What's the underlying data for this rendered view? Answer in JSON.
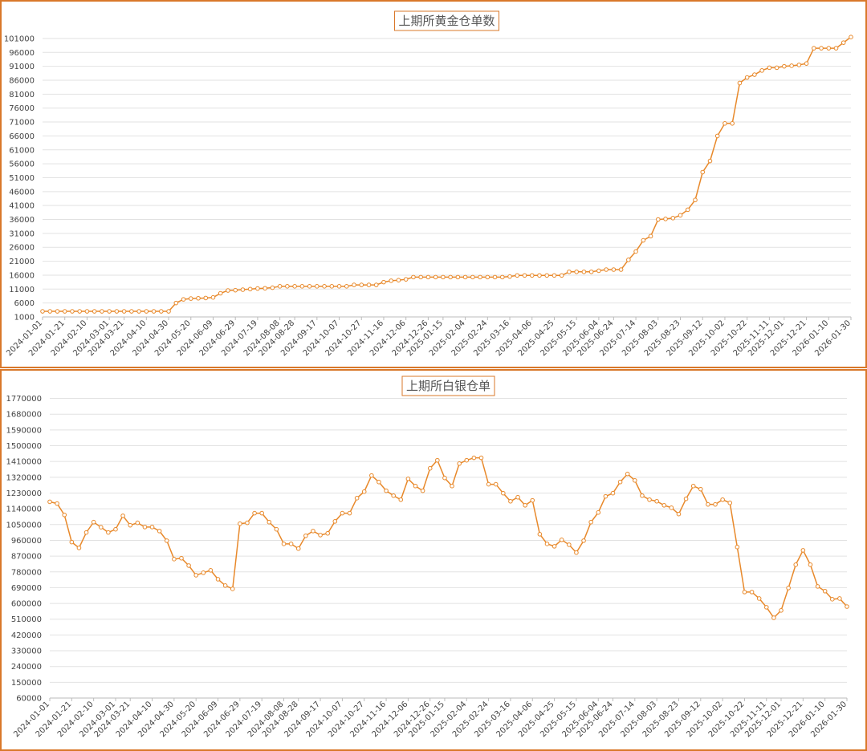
{
  "chart_data": [
    {
      "type": "line",
      "title": "上期所黄金仓单数",
      "color": "#e8892b",
      "grid": true,
      "categories": [
        "2024-01-01",
        null,
        null,
        "2024-01-21",
        null,
        null,
        "2024-02-10",
        null,
        null,
        "2024-03-01",
        null,
        "2024-03-21",
        null,
        null,
        "2024-04-10",
        null,
        null,
        "2024-04-30",
        null,
        null,
        "2024-05-20",
        null,
        null,
        "2024-06-09",
        null,
        null,
        "2024-06-29",
        null,
        null,
        "2024-07-19",
        null,
        null,
        "2024-08-08",
        null,
        "2024-08-28",
        null,
        null,
        "2024-09-17",
        null,
        null,
        "2024-10-07",
        null,
        null,
        "2024-10-27",
        null,
        null,
        "2024-11-16",
        null,
        null,
        "2024-12-06",
        null,
        null,
        "2024-12-26",
        null,
        "2025-01-15",
        null,
        null,
        "2025-02-04",
        null,
        null,
        "2025-02-24",
        null,
        null,
        "2025-03-16",
        null,
        null,
        "2025-04-06",
        null,
        null,
        "2025-04-25",
        null,
        null,
        "2025-05-15",
        null,
        null,
        "2025-06-04",
        null,
        "2025-06-24",
        null,
        null,
        "2025-07-14",
        null,
        null,
        "2025-08-03",
        null,
        null,
        "2025-08-23",
        null,
        null,
        "2025-09-12",
        null,
        null,
        "2025-10-02",
        null,
        null,
        "2025-10-22",
        null,
        null,
        "2025-11-11",
        null,
        "2025-12-01",
        null,
        null,
        "2025-12-21",
        null,
        null,
        "2026-01-10",
        null,
        null,
        "2026-01-30"
      ],
      "values": [
        3000,
        3000,
        3000,
        3000,
        3000,
        3000,
        3000,
        3000,
        3000,
        3000,
        3000,
        3000,
        3000,
        3000,
        3000,
        3000,
        3000,
        3000,
        6000,
        7300,
        7600,
        7700,
        7800,
        8000,
        9500,
        10500,
        10600,
        10800,
        11000,
        11200,
        11300,
        11500,
        12000,
        12000,
        12000,
        12000,
        12000,
        12000,
        12000,
        12000,
        12000,
        12000,
        12500,
        12500,
        12500,
        12500,
        13500,
        14000,
        14200,
        14500,
        15300,
        15300,
        15300,
        15300,
        15300,
        15300,
        15300,
        15300,
        15300,
        15300,
        15300,
        15300,
        15300,
        15500,
        15900,
        15900,
        15900,
        15900,
        15900,
        15900,
        15900,
        17200,
        17200,
        17200,
        17200,
        17600,
        18000,
        18000,
        18000,
        21500,
        24500,
        28500,
        30000,
        36000,
        36200,
        36500,
        37500,
        39500,
        43000,
        53000,
        57000,
        66000,
        70500,
        70500,
        85000,
        87000,
        88000,
        89500,
        90500,
        90500,
        91000,
        91200,
        91500,
        92000,
        97500,
        97500,
        97500,
        97500,
        99500,
        101500
      ],
      "ylim": [
        1000,
        103000
      ],
      "yticks": [
        1000,
        6000,
        11000,
        16000,
        21000,
        26000,
        31000,
        36000,
        41000,
        46000,
        51000,
        56000,
        61000,
        66000,
        71000,
        76000,
        81000,
        86000,
        91000,
        96000,
        101000
      ]
    },
    {
      "type": "line",
      "title": "上期所白银仓单",
      "color": "#e8892b",
      "grid": true,
      "categories": [
        "2024-01-01",
        null,
        null,
        "2024-01-21",
        null,
        null,
        "2024-02-10",
        null,
        null,
        "2024-03-01",
        null,
        "2024-03-21",
        null,
        null,
        "2024-04-10",
        null,
        null,
        "2024-04-30",
        null,
        null,
        "2024-05-20",
        null,
        null,
        "2024-06-09",
        null,
        null,
        "2024-06-29",
        null,
        null,
        "2024-07-19",
        null,
        null,
        "2024-08-08",
        null,
        "2024-08-28",
        null,
        null,
        "2024-09-17",
        null,
        null,
        "2024-10-07",
        null,
        null,
        "2024-10-27",
        null,
        null,
        "2024-11-16",
        null,
        null,
        "2024-12-06",
        null,
        null,
        "2024-12-26",
        null,
        "2025-01-15",
        null,
        null,
        "2025-02-04",
        null,
        null,
        "2025-02-24",
        null,
        null,
        "2025-03-16",
        null,
        null,
        "2025-04-06",
        null,
        null,
        "2025-04-25",
        null,
        null,
        "2025-05-15",
        null,
        null,
        "2025-06-04",
        null,
        "2025-06-24",
        null,
        null,
        "2025-07-14",
        null,
        null,
        "2025-08-03",
        null,
        null,
        "2025-08-23",
        null,
        null,
        "2025-09-12",
        null,
        null,
        "2025-10-02",
        null,
        null,
        "2025-10-22",
        null,
        null,
        "2025-11-11",
        null,
        "2025-12-01",
        null,
        null,
        "2025-12-21",
        null,
        null,
        "2026-01-10",
        null,
        null,
        "2026-01-30"
      ],
      "values": [
        1180000,
        1170000,
        1105000,
        950000,
        917000,
        1005000,
        1064000,
        1035000,
        1005000,
        1023000,
        1100000,
        1046000,
        1060000,
        1036000,
        1036000,
        1013000,
        958000,
        853000,
        858000,
        816000,
        761000,
        775000,
        789000,
        738000,
        702000,
        683000,
        1055000,
        1060000,
        1115000,
        1115000,
        1064000,
        1023000,
        940000,
        940000,
        913000,
        986000,
        1013000,
        990000,
        1000000,
        1068000,
        1115000,
        1115000,
        1201000,
        1238000,
        1330000,
        1293000,
        1243000,
        1215000,
        1192000,
        1311000,
        1270000,
        1243000,
        1371000,
        1417000,
        1316000,
        1270000,
        1398000,
        1417000,
        1431000,
        1431000,
        1280000,
        1280000,
        1229000,
        1183000,
        1206000,
        1160000,
        1188000,
        995000,
        940000,
        926000,
        963000,
        935000,
        890000,
        958000,
        1064000,
        1119000,
        1211000,
        1229000,
        1293000,
        1339000,
        1302000,
        1215000,
        1192000,
        1183000,
        1160000,
        1146000,
        1110000,
        1197000,
        1270000,
        1252000,
        1165000,
        1165000,
        1192000,
        1174000,
        922000,
        665000,
        665000,
        628000,
        578000,
        518000,
        560000,
        688000,
        821000,
        903000,
        821000,
        697000,
        670000,
        624000,
        628000,
        582000
      ],
      "ylim": [
        60000,
        1800000
      ],
      "yticks": [
        60000,
        150000,
        240000,
        330000,
        420000,
        510000,
        600000,
        690000,
        780000,
        870000,
        960000,
        1050000,
        1140000,
        1230000,
        1320000,
        1410000,
        1500000,
        1590000,
        1680000,
        1770000
      ]
    }
  ]
}
